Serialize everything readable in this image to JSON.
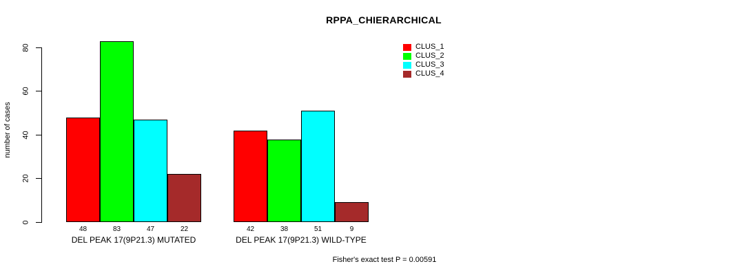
{
  "chart_data": {
    "type": "bar",
    "title": "RPPA_CHIERARCHICAL",
    "ylabel": "number of cases",
    "xlabel": "",
    "categories": [
      "DEL PEAK 17(9P21.3) MUTATED",
      "DEL PEAK 17(9P21.3) WILD-TYPE"
    ],
    "series": [
      {
        "name": "CLUS_1",
        "color": "#FF0000",
        "values": [
          48,
          42
        ]
      },
      {
        "name": "CLUS_2",
        "color": "#00FF00",
        "values": [
          83,
          38
        ]
      },
      {
        "name": "CLUS_3",
        "color": "#00FFFF",
        "values": [
          47,
          51
        ]
      },
      {
        "name": "CLUS_4",
        "color": "#A52A2A",
        "values": [
          22,
          9
        ]
      }
    ],
    "yticks": [
      0,
      20,
      40,
      60,
      80
    ],
    "ylim": [
      0,
      83
    ],
    "bar_outline_color": "#000000",
    "grid": false,
    "legend_position": "top-right",
    "annotation": "Fisher's exact test P = 0.00591"
  }
}
